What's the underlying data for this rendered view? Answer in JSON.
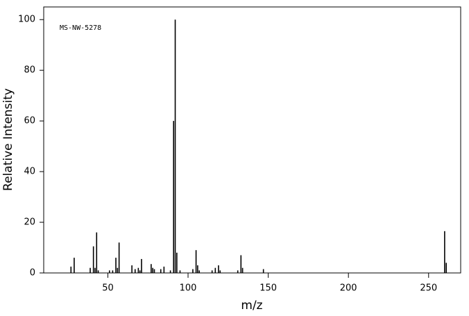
{
  "chart_data": {
    "type": "stick",
    "annotation": "MS-NW-5278",
    "x_label": "m/z",
    "y_label": "Relative Intensity",
    "x": [
      27,
      29,
      39,
      41,
      42,
      43,
      44,
      51,
      53,
      55,
      56,
      57,
      65,
      67,
      69,
      70,
      71,
      77,
      78,
      79,
      83,
      85,
      89,
      91,
      92,
      93,
      95,
      103,
      105,
      106,
      107,
      115,
      117,
      119,
      120,
      131,
      133,
      134,
      147,
      260,
      261
    ],
    "values": [
      2.5,
      6,
      2,
      10.5,
      2,
      16,
      1,
      1,
      1,
      6,
      2,
      12,
      3,
      1.5,
      2,
      1,
      5.5,
      3.5,
      2,
      1.5,
      1.5,
      2.5,
      1,
      60,
      100,
      8,
      1,
      1.5,
      9,
      3,
      1,
      1,
      2,
      3,
      1,
      1,
      7,
      2,
      1.5,
      16.5,
      4
    ],
    "color": "#000000",
    "xlim": [
      10,
      270
    ],
    "xticks": [
      50,
      100,
      150,
      200,
      250
    ],
    "ylim": [
      0,
      105
    ],
    "yticks": [
      0,
      20,
      40,
      60,
      80,
      100
    ]
  }
}
